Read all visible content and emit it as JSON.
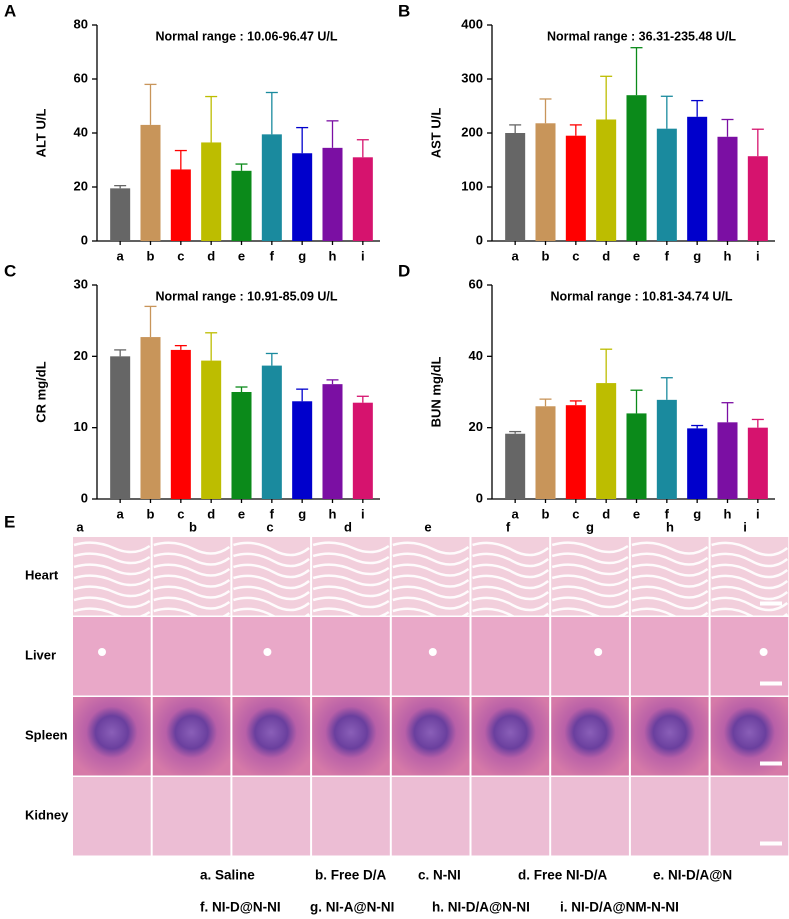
{
  "chart_data": [
    {
      "type": "bar",
      "label": "A",
      "title": "Normal range : 10.06-96.47 U/L",
      "ylabel": "ALT U/L",
      "categories": [
        "a",
        "b",
        "c",
        "d",
        "e",
        "f",
        "g",
        "h",
        "i"
      ],
      "values": [
        19.5,
        43,
        26.5,
        36.5,
        26,
        39.5,
        32.5,
        34.5,
        31
      ],
      "errors": [
        1,
        15,
        7,
        17,
        2.5,
        15.5,
        9.5,
        10,
        6.5
      ],
      "colors": [
        "#666666",
        "#c8955a",
        "#ff0000",
        "#bdbd00",
        "#0b8a1a",
        "#1a8a9e",
        "#0000cc",
        "#7b0fa3",
        "#d6136e"
      ],
      "ylim": [
        0,
        80
      ],
      "yticks": [
        0,
        20,
        40,
        60,
        80
      ]
    },
    {
      "type": "bar",
      "label": "B",
      "title": "Normal range : 36.31-235.48  U/L",
      "ylabel": "AST U/L",
      "categories": [
        "a",
        "b",
        "c",
        "d",
        "e",
        "f",
        "g",
        "h",
        "i"
      ],
      "values": [
        200,
        218,
        195,
        225,
        270,
        208,
        230,
        193,
        157
      ],
      "errors": [
        15,
        45,
        20,
        80,
        88,
        60,
        30,
        32,
        50
      ],
      "colors": [
        "#666666",
        "#c8955a",
        "#ff0000",
        "#bdbd00",
        "#0b8a1a",
        "#1a8a9e",
        "#0000cc",
        "#7b0fa3",
        "#d6136e"
      ],
      "ylim": [
        0,
        400
      ],
      "yticks": [
        0,
        100,
        200,
        300,
        400
      ]
    },
    {
      "type": "bar",
      "label": "C",
      "title": "Normal range : 10.91-85.09 U/L",
      "ylabel": "CR mg/dL",
      "categories": [
        "a",
        "b",
        "c",
        "d",
        "e",
        "f",
        "g",
        "h",
        "i"
      ],
      "values": [
        20,
        22.7,
        20.9,
        19.4,
        15,
        18.7,
        13.7,
        16.1,
        13.5
      ],
      "errors": [
        0.9,
        4.3,
        0.6,
        3.9,
        0.7,
        1.7,
        1.7,
        0.6,
        0.9
      ],
      "colors": [
        "#666666",
        "#c8955a",
        "#ff0000",
        "#bdbd00",
        "#0b8a1a",
        "#1a8a9e",
        "#0000cc",
        "#7b0fa3",
        "#d6136e"
      ],
      "ylim": [
        0,
        30
      ],
      "yticks": [
        0,
        10,
        20,
        30
      ]
    },
    {
      "type": "bar",
      "label": "D",
      "title": "Normal range : 10.81-34.74 U/L",
      "ylabel": "BUN mg/dL",
      "categories": [
        "a",
        "b",
        "c",
        "d",
        "e",
        "f",
        "g",
        "h",
        "i"
      ],
      "values": [
        18.3,
        26,
        26.3,
        32.5,
        24,
        27.8,
        19.8,
        21.5,
        20
      ],
      "errors": [
        0.6,
        2,
        1.2,
        9.5,
        6.5,
        6.2,
        0.8,
        5.5,
        2.3
      ],
      "colors": [
        "#666666",
        "#c8955a",
        "#ff0000",
        "#bdbd00",
        "#0b8a1a",
        "#1a8a9e",
        "#0000cc",
        "#7b0fa3",
        "#d6136e"
      ],
      "ylim": [
        0,
        60
      ],
      "yticks": [
        0,
        20,
        40,
        60
      ]
    }
  ],
  "histology": {
    "label": "E",
    "columns": [
      "a",
      "b",
      "c",
      "d",
      "e",
      "f",
      "g",
      "h",
      "i"
    ],
    "rows": [
      "Heart",
      "Liver",
      "Spleen",
      "Kidney"
    ]
  },
  "legend": [
    [
      "a. Saline",
      "b. Free D/A",
      "c. N-NI",
      "d. Free NI-D/A",
      "e. NI-D/A@N"
    ],
    [
      "f.  NI-D@N-NI",
      "g. NI-A@N-NI",
      "h. NI-D/A@N-NI",
      "i. NI-D/A@NM-N-NI"
    ]
  ]
}
